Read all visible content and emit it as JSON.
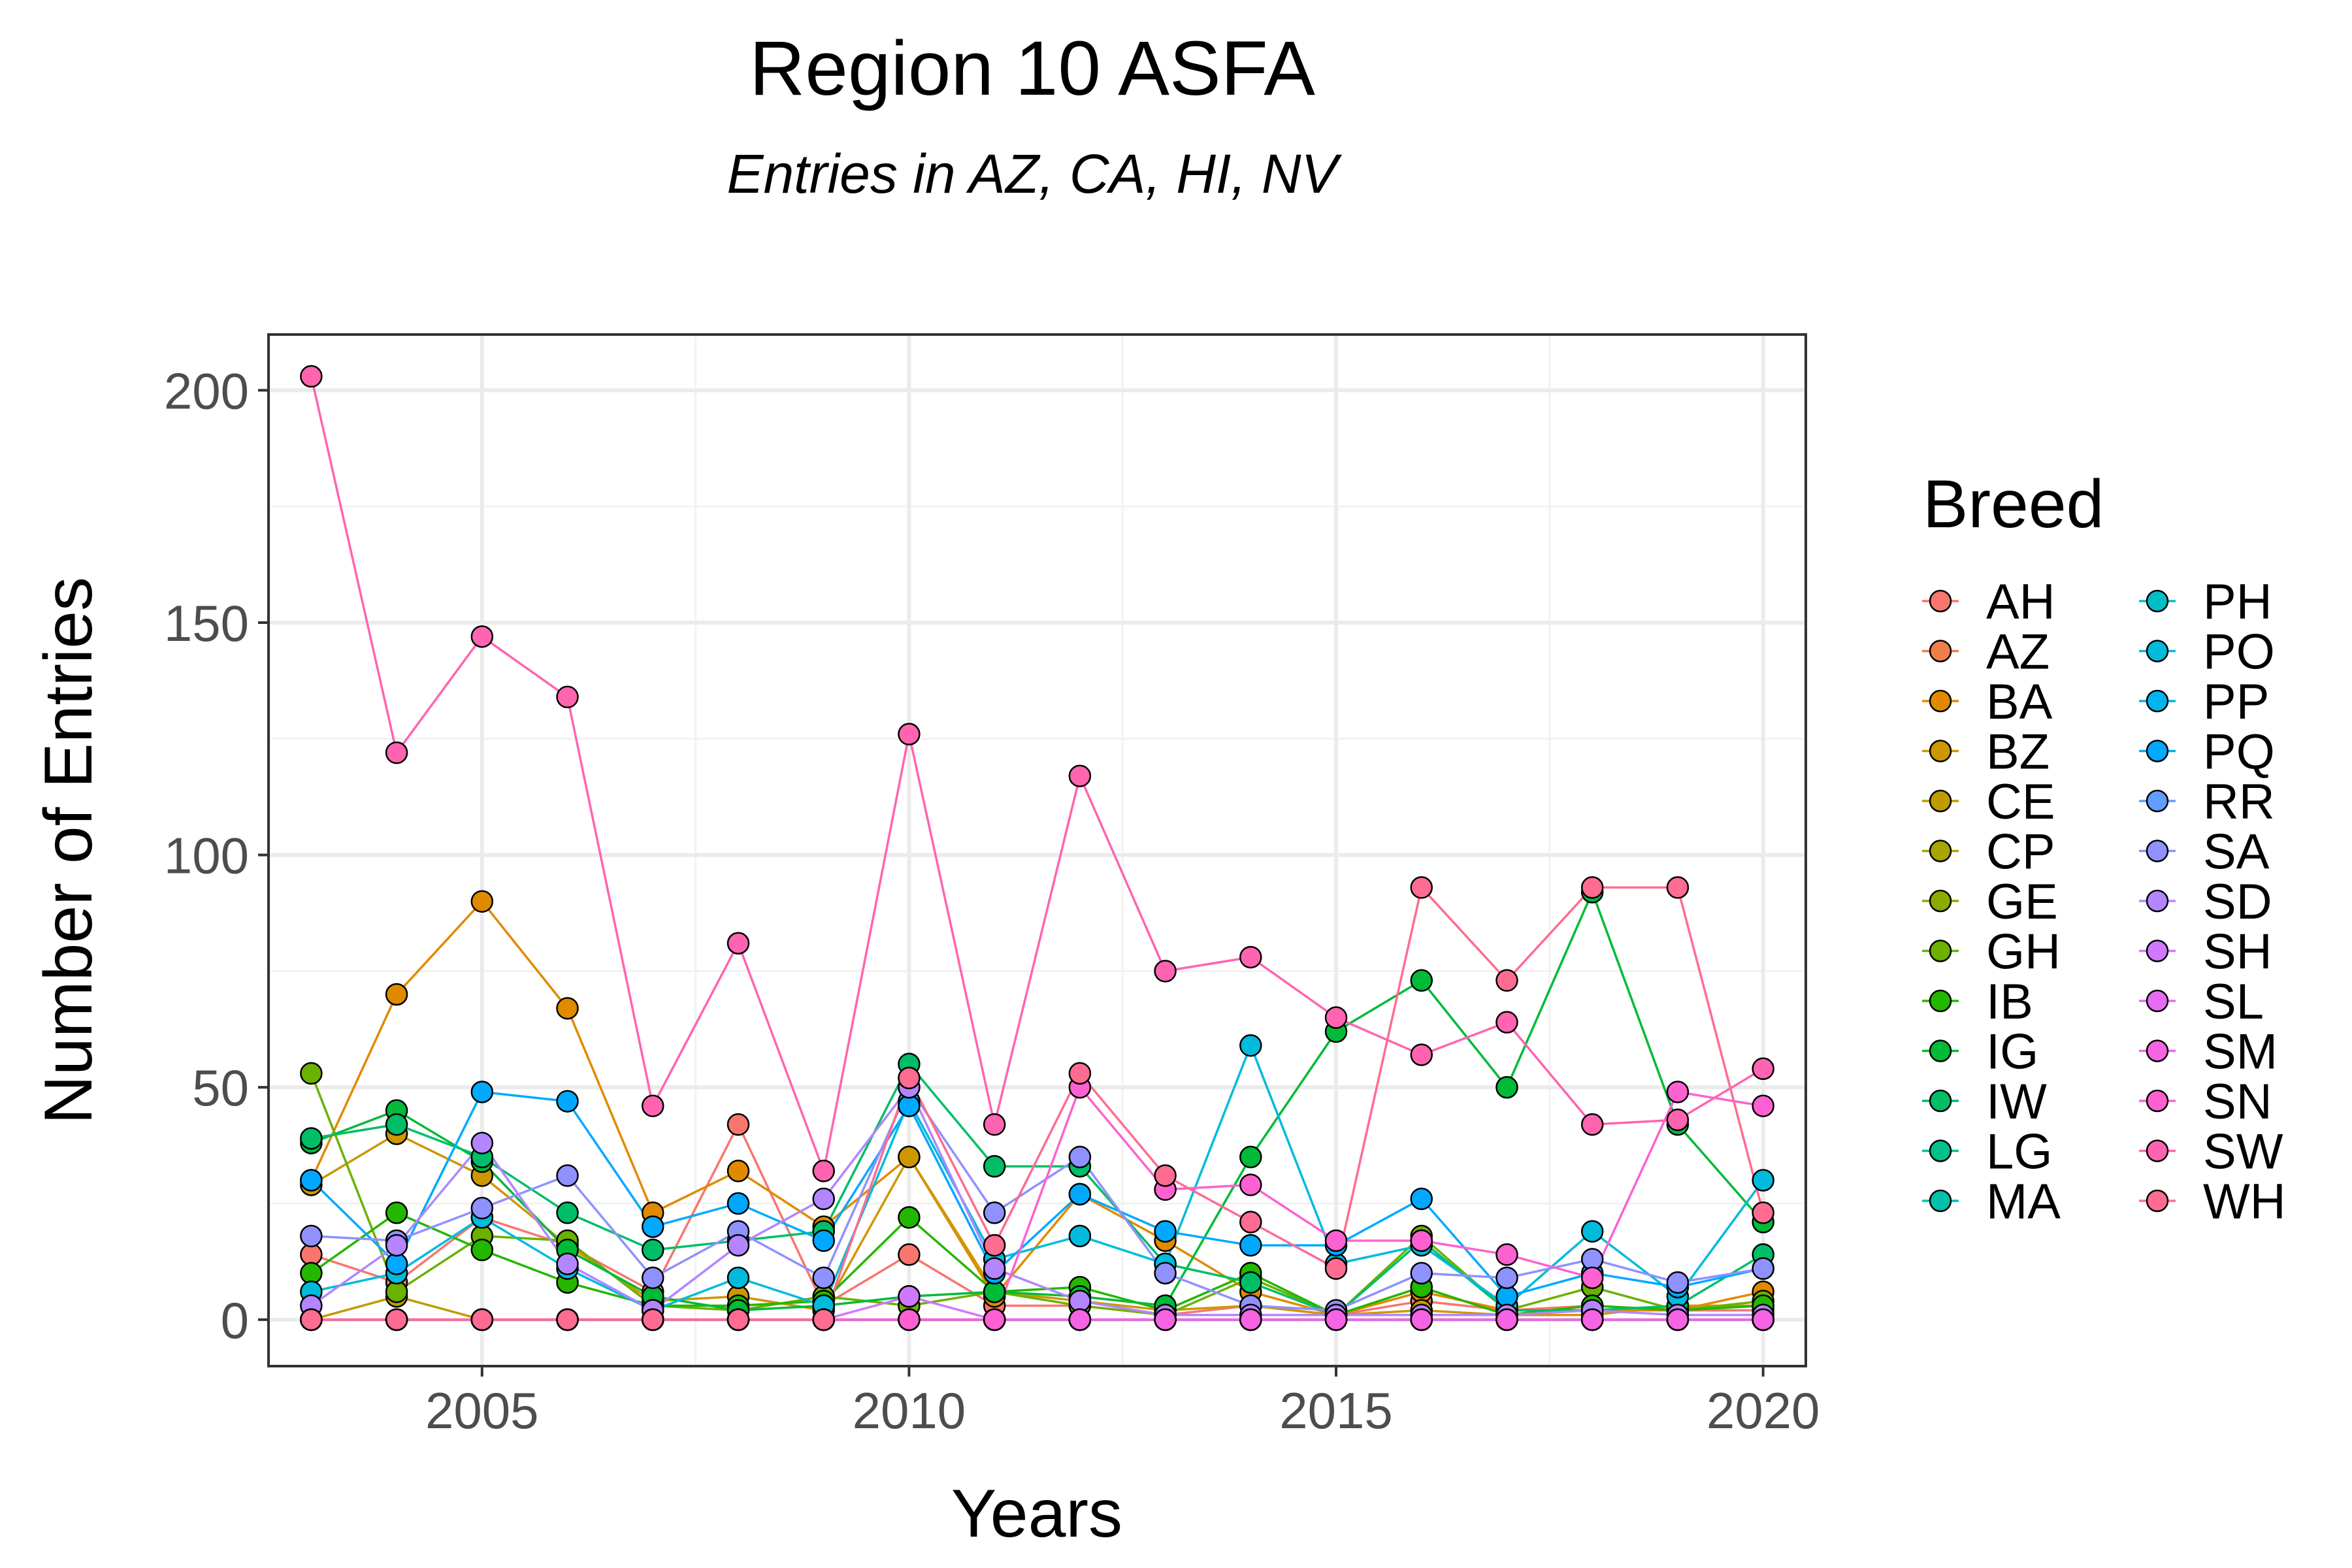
{
  "chart_data": {
    "type": "line",
    "title": "Region 10 ASFA",
    "subtitle": "Entries in AZ, CA, HI, NV",
    "xlabel": "Years",
    "ylabel": "Number of Entries",
    "xlim": [
      2002.5,
      2020.5
    ],
    "ylim": [
      -10,
      212
    ],
    "x_ticks": [
      2005,
      2010,
      2015,
      2020
    ],
    "y_ticks": [
      0,
      50,
      100,
      150,
      200
    ],
    "grid": true,
    "legend": {
      "title": "Breed",
      "position": "right"
    },
    "x": [
      2003,
      2004,
      2005,
      2006,
      2007,
      2008,
      2009,
      2010,
      2011,
      2012,
      2013,
      2014,
      2015,
      2016,
      2017,
      2018,
      2019,
      2020
    ],
    "series": [
      {
        "name": "AH",
        "color": "#F8766D",
        "values": [
          14,
          8,
          22,
          16,
          6,
          42,
          3,
          14,
          3,
          3,
          1,
          3,
          1,
          4,
          2,
          3,
          2,
          2
        ]
      },
      {
        "name": "AZ",
        "color": "#EF7F49",
        "values": [
          0,
          0,
          0,
          0,
          0,
          0,
          0,
          0,
          0,
          0,
          0,
          0,
          0,
          0,
          0,
          0,
          0,
          0
        ]
      },
      {
        "name": "BA",
        "color": "#E18A00",
        "values": [
          30,
          70,
          90,
          67,
          23,
          32,
          20,
          35,
          5,
          27,
          17,
          6,
          1,
          6,
          2,
          2,
          2,
          6
        ]
      },
      {
        "name": "BZ",
        "color": "#CE9700",
        "values": [
          29,
          40,
          31,
          16,
          4,
          5,
          2,
          35,
          6,
          4,
          2,
          3,
          1,
          2,
          1,
          1,
          3,
          3
        ]
      },
      {
        "name": "CE",
        "color": "#BE9C00",
        "values": [
          0,
          5,
          0,
          0,
          0,
          0,
          0,
          0,
          0,
          0,
          0,
          0,
          0,
          0,
          0,
          0,
          0,
          0
        ]
      },
      {
        "name": "CP",
        "color": "#A8A400",
        "values": [
          0,
          0,
          0,
          0,
          0,
          0,
          0,
          0,
          0,
          0,
          0,
          0,
          0,
          0,
          0,
          0,
          0,
          0
        ]
      },
      {
        "name": "GE",
        "color": "#8CAB00",
        "values": [
          0,
          0,
          0,
          0,
          0,
          0,
          0,
          0,
          0,
          0,
          0,
          0,
          0,
          0,
          0,
          0,
          0,
          0
        ]
      },
      {
        "name": "GH",
        "color": "#6BB100",
        "values": [
          53,
          6,
          18,
          17,
          3,
          2,
          5,
          3,
          6,
          3,
          1,
          9,
          1,
          18,
          2,
          7,
          2,
          4
        ]
      },
      {
        "name": "IB",
        "color": "#24B700",
        "values": [
          10,
          23,
          15,
          8,
          3,
          3,
          4,
          22,
          6,
          7,
          2,
          10,
          1,
          7,
          1,
          3,
          2,
          3
        ]
      },
      {
        "name": "IG",
        "color": "#00BA38",
        "values": [
          38,
          45,
          34,
          15,
          5,
          2,
          3,
          5,
          6,
          5,
          3,
          35,
          62,
          73,
          50,
          92,
          42,
          21
        ]
      },
      {
        "name": "IW",
        "color": "#00BE67",
        "values": [
          39,
          42,
          35,
          23,
          15,
          17,
          19,
          55,
          33,
          33,
          12,
          8,
          1,
          17,
          2,
          2,
          3,
          14
        ]
      },
      {
        "name": "LG",
        "color": "#00C08B",
        "values": [
          0,
          0,
          0,
          0,
          0,
          0,
          0,
          0,
          0,
          0,
          0,
          0,
          0,
          0,
          0,
          0,
          0,
          0
        ]
      },
      {
        "name": "MA",
        "color": "#00C1A9",
        "values": [
          0,
          0,
          0,
          0,
          0,
          0,
          0,
          0,
          0,
          0,
          0,
          0,
          0,
          0,
          0,
          0,
          0,
          0
        ]
      },
      {
        "name": "PH",
        "color": "#00BFC4",
        "values": [
          0,
          0,
          0,
          0,
          0,
          0,
          0,
          0,
          0,
          0,
          0,
          0,
          0,
          0,
          0,
          0,
          0,
          0
        ]
      },
      {
        "name": "PO",
        "color": "#00BBDC",
        "values": [
          6,
          10,
          22,
          11,
          2,
          9,
          3,
          47,
          13,
          18,
          12,
          59,
          12,
          16,
          3,
          19,
          5,
          30
        ]
      },
      {
        "name": "PP",
        "color": "#00B4EF",
        "values": [
          0,
          0,
          0,
          0,
          0,
          0,
          0,
          0,
          0,
          0,
          0,
          0,
          0,
          0,
          0,
          0,
          0,
          0
        ]
      },
      {
        "name": "PQ",
        "color": "#00A9FF",
        "values": [
          30,
          12,
          49,
          47,
          20,
          25,
          17,
          46,
          10,
          27,
          19,
          16,
          16,
          26,
          5,
          10,
          7,
          11
        ]
      },
      {
        "name": "RR",
        "color": "#619CFF",
        "values": [
          0,
          0,
          0,
          0,
          0,
          0,
          0,
          0,
          0,
          0,
          0,
          0,
          0,
          0,
          0,
          0,
          0,
          0
        ]
      },
      {
        "name": "SA",
        "color": "#8F91FF",
        "values": [
          18,
          17,
          24,
          31,
          9,
          19,
          9,
          50,
          23,
          35,
          10,
          3,
          2,
          10,
          9,
          13,
          8,
          11
        ]
      },
      {
        "name": "SD",
        "color": "#B385FF",
        "values": [
          3,
          16,
          38,
          12,
          2,
          16,
          26,
          50,
          11,
          4,
          1,
          1,
          1,
          1,
          1,
          2,
          1,
          1
        ]
      },
      {
        "name": "SH",
        "color": "#D078FF",
        "values": [
          0,
          0,
          0,
          0,
          0,
          0,
          0,
          5,
          0,
          0,
          0,
          0,
          0,
          0,
          0,
          0,
          0,
          0
        ]
      },
      {
        "name": "SL",
        "color": "#E76BF3",
        "values": [
          0,
          0,
          0,
          0,
          0,
          0,
          0,
          0,
          0,
          0,
          0,
          0,
          0,
          0,
          0,
          0,
          0,
          0
        ]
      },
      {
        "name": "SM",
        "color": "#F564E3",
        "values": [
          0,
          0,
          0,
          0,
          0,
          0,
          0,
          0,
          0,
          0,
          0,
          0,
          0,
          0,
          0,
          0,
          0,
          0
        ]
      },
      {
        "name": "SN",
        "color": "#FD61D1",
        "values": [
          0,
          0,
          0,
          0,
          0,
          0,
          0,
          0,
          0,
          50,
          28,
          29,
          17,
          17,
          14,
          9,
          49,
          46
        ]
      },
      {
        "name": "SW",
        "color": "#FF64B0",
        "values": [
          203,
          122,
          147,
          134,
          46,
          81,
          32,
          126,
          42,
          117,
          75,
          78,
          65,
          57,
          64,
          42,
          43,
          54
        ]
      },
      {
        "name": "WH",
        "color": "#FF6C91",
        "values": [
          0,
          0,
          0,
          0,
          0,
          0,
          0,
          52,
          16,
          53,
          31,
          21,
          11,
          93,
          73,
          93,
          93,
          23
        ]
      }
    ]
  }
}
